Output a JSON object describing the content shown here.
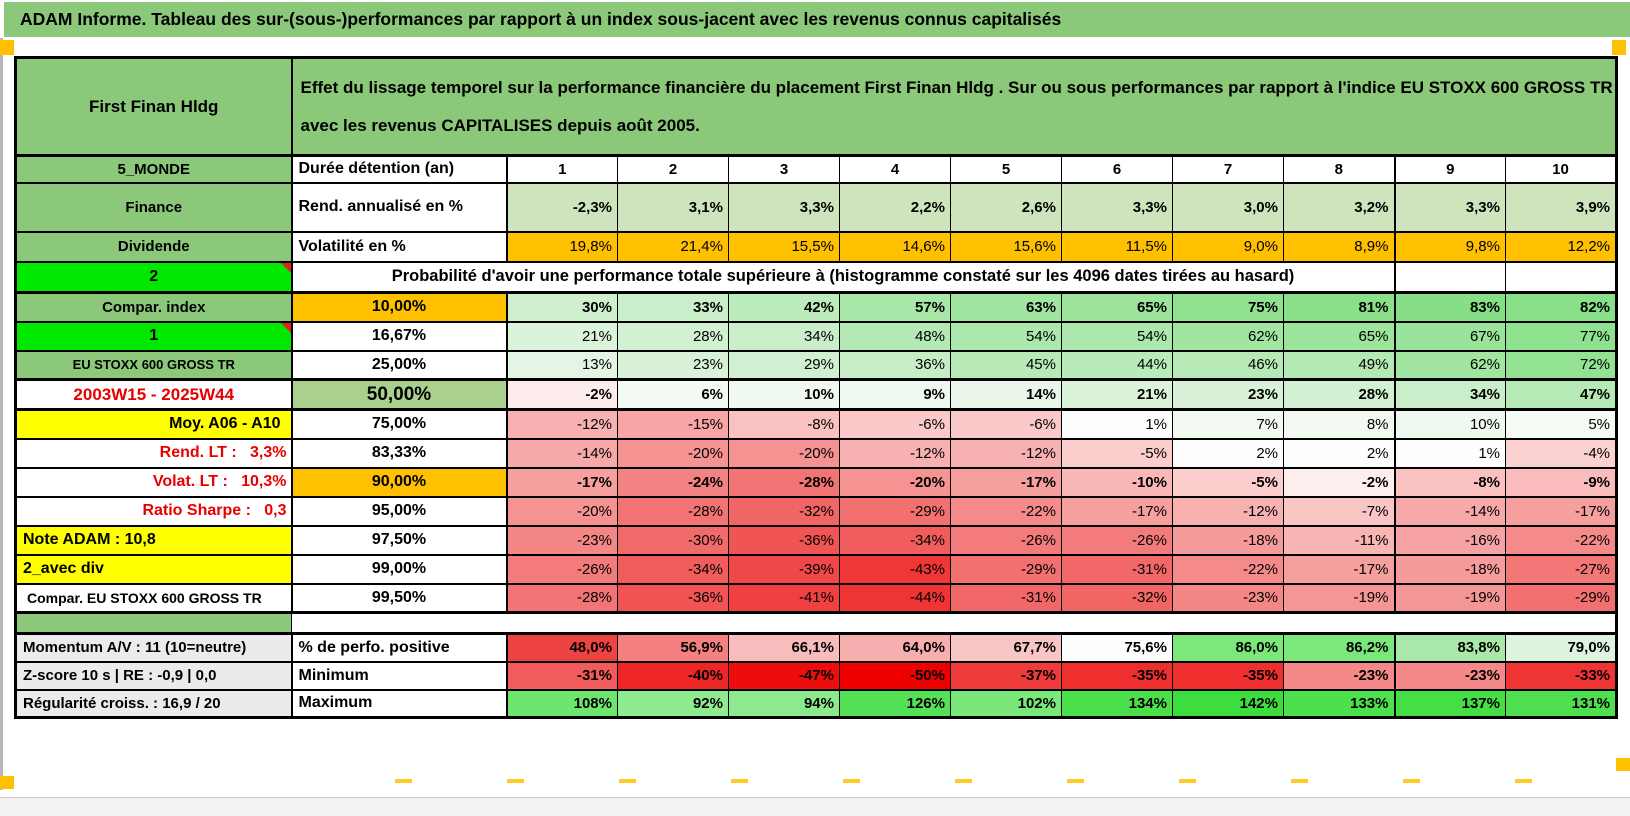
{
  "title": "ADAM Informe. Tableau des sur-(sous-)performances par rapport à un index sous-jacent avec les revenus connus capitalisés",
  "colors": {
    "header_green": "#8cc87a",
    "bright_green": "#00e800",
    "orange": "#ffc000",
    "yellow": "#ffff00",
    "green_50": "#a9d08e",
    "gray_label": "#ebebeb",
    "red_text": "#e80000"
  },
  "header": {
    "asset_name": "First Finan Hldg",
    "description": "Effet du lissage temporel sur la performance financière du placement First Finan Hldg . Sur ou sous performances par rapport à l'indice EU STOXX 600 GROSS TR avec les revenus CAPITALISES depuis août 2005."
  },
  "table": {
    "rows": [
      {
        "a": "5_MONDE",
        "aCls": "a-green",
        "b": "Durée détention (an)",
        "bCls": "",
        "cls": "r-head",
        "center": true,
        "cells": [
          [
            "1",
            ""
          ],
          [
            "2",
            ""
          ],
          [
            "3",
            ""
          ],
          [
            "4",
            ""
          ],
          [
            "5",
            ""
          ],
          [
            "6",
            ""
          ],
          [
            "7",
            ""
          ],
          [
            "8",
            ""
          ],
          [
            "9",
            ""
          ],
          [
            "10",
            ""
          ]
        ]
      },
      {
        "a": "Finance",
        "aCls": "a-green",
        "b": "Rend. annualisé en %",
        "bCls": "",
        "cls": "r-rend",
        "bold": true,
        "cells": [
          [
            "-2,3%",
            "#cfe4bc"
          ],
          [
            "3,1%",
            "#cfe4bc"
          ],
          [
            "3,3%",
            "#cfe4bc"
          ],
          [
            "2,2%",
            "#cfe4bc"
          ],
          [
            "2,6%",
            "#cfe4bc"
          ],
          [
            "3,3%",
            "#cfe4bc"
          ],
          [
            "3,0%",
            "#cfe4bc"
          ],
          [
            "3,2%",
            "#cfe4bc"
          ],
          [
            "3,3%",
            "#cfe4bc"
          ],
          [
            "3,9%",
            "#cfe4bc"
          ]
        ]
      },
      {
        "a": "Dividende",
        "aCls": "a-green",
        "b": "Volatilité en %",
        "bCls": "",
        "cls": "r-vol",
        "cells": [
          [
            "19,8%",
            "#ffc000"
          ],
          [
            "21,4%",
            "#ffc000"
          ],
          [
            "15,5%",
            "#ffc000"
          ],
          [
            "14,6%",
            "#ffc000"
          ],
          [
            "15,6%",
            "#ffc000"
          ],
          [
            "11,5%",
            "#ffc000"
          ],
          [
            "9,0%",
            "#ffc000"
          ],
          [
            "8,9%",
            "#ffc000"
          ],
          [
            "9,8%",
            "#ffc000"
          ],
          [
            "12,2%",
            "#ffc000"
          ]
        ]
      },
      {
        "type": "banner",
        "a": "2",
        "aCls": "a-bright",
        "cls": "r-banner",
        "banner": "Probabilité d'avoir une performance totale supérieure à (histogramme constaté sur les 4096 dates tirées au hasard)"
      },
      {
        "a": "Compar. index",
        "aCls": "a-green",
        "b": "10,00%",
        "bCls": "b-orange",
        "bold": true,
        "cells": [
          [
            "30%",
            "#cfefcf"
          ],
          [
            "33%",
            "#caeeca"
          ],
          [
            "42%",
            "#bcebbc"
          ],
          [
            "57%",
            "#a8e7a8"
          ],
          [
            "63%",
            "#a0e5a0"
          ],
          [
            "65%",
            "#9de49d"
          ],
          [
            "75%",
            "#90e190"
          ],
          [
            "81%",
            "#89e089"
          ],
          [
            "83%",
            "#86df86"
          ],
          [
            "82%",
            "#87df87"
          ]
        ]
      },
      {
        "a": "1",
        "aCls": "a-bright",
        "b": "16,67%",
        "bCls": "b-center",
        "cells": [
          [
            "21%",
            "#dbf2db"
          ],
          [
            "28%",
            "#d2f0d2"
          ],
          [
            "34%",
            "#c9eec9"
          ],
          [
            "48%",
            "#b4e9b4"
          ],
          [
            "54%",
            "#ace7ac"
          ],
          [
            "54%",
            "#ace7ac"
          ],
          [
            "62%",
            "#a1e5a1"
          ],
          [
            "65%",
            "#9de49d"
          ],
          [
            "67%",
            "#9ae39a"
          ],
          [
            "77%",
            "#8ee18e"
          ]
        ]
      },
      {
        "a": "EU STOXX 600 GROSS TR",
        "aCls": "a-green a-small",
        "b": "25,00%",
        "bCls": "b-center",
        "cells": [
          [
            "13%",
            "#e5f5e5"
          ],
          [
            "23%",
            "#d8f1d8"
          ],
          [
            "29%",
            "#d1efd1"
          ],
          [
            "36%",
            "#c7edc7"
          ],
          [
            "45%",
            "#b8eab8"
          ],
          [
            "44%",
            "#b9eab9"
          ],
          [
            "46%",
            "#b7e9b7"
          ],
          [
            "49%",
            "#b3e9b3"
          ],
          [
            "62%",
            "#a1e5a1"
          ],
          [
            "72%",
            "#93e293"
          ]
        ]
      },
      {
        "a": "2003W15 - 2025W44",
        "aCls": "a-redC",
        "b": "50,00%",
        "bCls": "b-green50",
        "cls": "r-50",
        "bold": true,
        "cells": [
          [
            "-2%",
            "#fcecec"
          ],
          [
            "6%",
            "#f4fbf4"
          ],
          [
            "10%",
            "#eff9ef"
          ],
          [
            "9%",
            "#f0f9f0"
          ],
          [
            "14%",
            "#e9f6e9"
          ],
          [
            "21%",
            "#dbf2db"
          ],
          [
            "23%",
            "#d8f1d8"
          ],
          [
            "28%",
            "#d2f0d2"
          ],
          [
            "34%",
            "#c9eec9"
          ],
          [
            "47%",
            "#b5e9b5"
          ]
        ]
      },
      {
        "a": "Moy. A06 - A10",
        "aCls": "a-yellowR",
        "b": "75,00%",
        "bCls": "b-center",
        "cells": [
          [
            "-12%",
            "#f8b1b1"
          ],
          [
            "-15%",
            "#f7a5a5"
          ],
          [
            "-8%",
            "#fac1c1"
          ],
          [
            "-6%",
            "#fbc9c9"
          ],
          [
            "-6%",
            "#fbc9c9"
          ],
          [
            "1%",
            "#fdfdfd"
          ],
          [
            "7%",
            "#f2faf2"
          ],
          [
            "8%",
            "#f1f9f1"
          ],
          [
            "10%",
            "#eff9ef"
          ],
          [
            "5%",
            "#f5fbf5"
          ]
        ]
      },
      {
        "a": "Rend. LT :   3,3%",
        "aCls": "a-redR",
        "b": "83,33%",
        "bCls": "b-center",
        "cells": [
          [
            "-14%",
            "#f7a9a9"
          ],
          [
            "-20%",
            "#f59292"
          ],
          [
            "-20%",
            "#f59292"
          ],
          [
            "-12%",
            "#f8b1b1"
          ],
          [
            "-12%",
            "#f8b1b1"
          ],
          [
            "-5%",
            "#fbcdcd"
          ],
          [
            "2%",
            "#fcfdfc"
          ],
          [
            "2%",
            "#fdfdfd"
          ],
          [
            "1%",
            "#fefefe"
          ],
          [
            "-4%",
            "#fcd1d1"
          ]
        ]
      },
      {
        "a": "Volat. LT :   10,3%",
        "aCls": "a-redR",
        "b": "90,00%",
        "bCls": "b-orange",
        "bold": true,
        "cells": [
          [
            "-17%",
            "#f69f9f"
          ],
          [
            "-24%",
            "#f38383"
          ],
          [
            "-28%",
            "#f27474"
          ],
          [
            "-20%",
            "#f59292"
          ],
          [
            "-17%",
            "#f69f9f"
          ],
          [
            "-10%",
            "#f9b8b8"
          ],
          [
            "-5%",
            "#fbcdcd"
          ],
          [
            "-2%",
            "#fdeeee"
          ],
          [
            "-8%",
            "#fac1c1"
          ],
          [
            "-9%",
            "#fabcbc"
          ]
        ]
      },
      {
        "a": "Ratio Sharpe :   0,3",
        "aCls": "a-redR",
        "b": "95,00%",
        "bCls": "b-center",
        "cells": [
          [
            "-20%",
            "#f59292"
          ],
          [
            "-28%",
            "#f27474"
          ],
          [
            "-32%",
            "#f16565"
          ],
          [
            "-29%",
            "#f27070"
          ],
          [
            "-22%",
            "#f48a8a"
          ],
          [
            "-17%",
            "#f69f9f"
          ],
          [
            "-12%",
            "#f8b1b1"
          ],
          [
            "-7%",
            "#fac5c5"
          ],
          [
            "-14%",
            "#f7a9a9"
          ],
          [
            "-17%",
            "#f69f9f"
          ]
        ]
      },
      {
        "a": "Note ADAM : 10,8",
        "aCls": "a-yellowL",
        "b": "97,50%",
        "bCls": "b-center",
        "cells": [
          [
            "-23%",
            "#f48686"
          ],
          [
            "-30%",
            "#f26b6b"
          ],
          [
            "-36%",
            "#f05454"
          ],
          [
            "-34%",
            "#f15c5c"
          ],
          [
            "-26%",
            "#f37b7b"
          ],
          [
            "-26%",
            "#f37b7b"
          ],
          [
            "-18%",
            "#f69b9b"
          ],
          [
            "-11%",
            "#f9b4b4"
          ],
          [
            "-16%",
            "#f6a2a2"
          ],
          [
            "-22%",
            "#f48a8a"
          ]
        ]
      },
      {
        "a": "2_avec div",
        "aCls": "a-yellowL",
        "b": "99,00%",
        "bCls": "b-center",
        "cells": [
          [
            "-26%",
            "#f37b7b"
          ],
          [
            "-34%",
            "#f15c5c"
          ],
          [
            "-39%",
            "#f04848"
          ],
          [
            "-43%",
            "#ef3737"
          ],
          [
            "-29%",
            "#f27070"
          ],
          [
            "-31%",
            "#f26868"
          ],
          [
            "-22%",
            "#f48a8a"
          ],
          [
            "-17%",
            "#f69f9f"
          ],
          [
            "-18%",
            "#f69b9b"
          ],
          [
            "-27%",
            "#f37777"
          ]
        ]
      },
      {
        "a": "Compar. EU STOXX 600 GROSS TR",
        "aCls": "a-whiteL",
        "b": "99,50%",
        "bCls": "b-center",
        "cells": [
          [
            "-28%",
            "#f27474"
          ],
          [
            "-36%",
            "#f05454"
          ],
          [
            "-41%",
            "#f04040"
          ],
          [
            "-44%",
            "#ef3434"
          ],
          [
            "-31%",
            "#f26868"
          ],
          [
            "-32%",
            "#f16565"
          ],
          [
            "-23%",
            "#f48686"
          ],
          [
            "-19%",
            "#f59696"
          ],
          [
            "-19%",
            "#f59696"
          ],
          [
            "-29%",
            "#f27070"
          ]
        ]
      },
      {
        "type": "gap",
        "cls": "r-gap"
      },
      {
        "a": "Momentum A/V : 11 (10=neutre)",
        "aCls": "a-grayL",
        "b": "% de perfo. positive",
        "bCls": "",
        "cls": "r-bot",
        "bold": true,
        "cells": [
          [
            "48,0%",
            "#ee4343"
          ],
          [
            "56,9%",
            "#f48080"
          ],
          [
            "66,1%",
            "#f8bcbc"
          ],
          [
            "64,0%",
            "#f7aeae"
          ],
          [
            "67,7%",
            "#f9c6c6"
          ],
          [
            "75,6%",
            "#fdfdfd"
          ],
          [
            "86,0%",
            "#7ce87c"
          ],
          [
            "86,2%",
            "#7be87b"
          ],
          [
            "83,8%",
            "#a9e8a9"
          ],
          [
            "79,0%",
            "#def4de"
          ]
        ]
      },
      {
        "a": "Z-score 10 s | RE : -0,9 | 0,0",
        "aCls": "a-grayL",
        "b": "Minimum",
        "bCls": "",
        "cls": "r-bot",
        "bold": true,
        "cells": [
          [
            "-31%",
            "#f25b5b"
          ],
          [
            "-40%",
            "#ef2626"
          ],
          [
            "-47%",
            "#ee0d0d"
          ],
          [
            "-50%",
            "#ee0000"
          ],
          [
            "-37%",
            "#f03b3b"
          ],
          [
            "-35%",
            "#ef2e2e"
          ],
          [
            "-35%",
            "#ef2e2e"
          ],
          [
            "-23%",
            "#f58888"
          ],
          [
            "-23%",
            "#f58888"
          ],
          [
            "-33%",
            "#ef3434"
          ]
        ]
      },
      {
        "a": "Régularité croiss. : 16,9 / 20",
        "aCls": "a-grayL",
        "b": "Maximum",
        "bCls": "",
        "cls": "r-bot",
        "bold": true,
        "cells": [
          [
            "108%",
            "#6ee66e"
          ],
          [
            "92%",
            "#8feb8f"
          ],
          [
            "94%",
            "#8cea8c"
          ],
          [
            "126%",
            "#55e155"
          ],
          [
            "102%",
            "#79e779"
          ],
          [
            "134%",
            "#4bdf4b"
          ],
          [
            "142%",
            "#3edd3e"
          ],
          [
            "133%",
            "#4ce04c"
          ],
          [
            "137%",
            "#45de45"
          ],
          [
            "131%",
            "#4fe04f"
          ]
        ]
      }
    ]
  }
}
